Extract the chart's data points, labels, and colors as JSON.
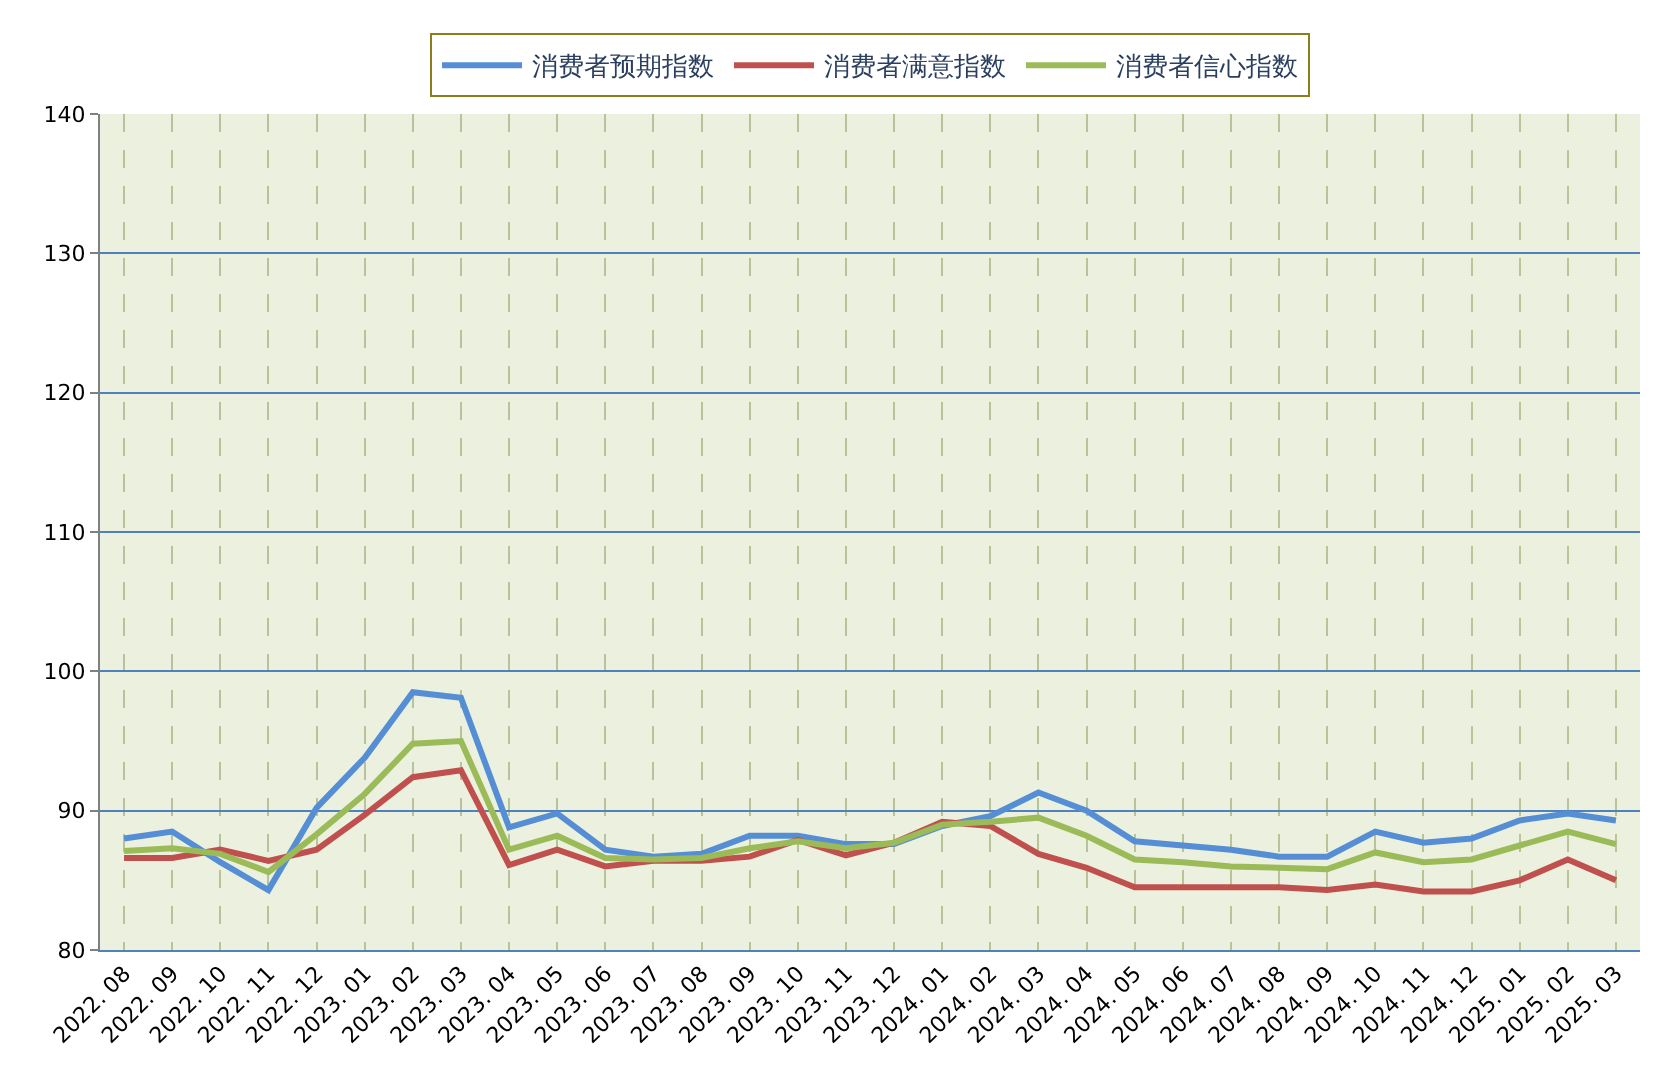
{
  "chart_data": {
    "type": "line",
    "categories": [
      "2022. 08",
      "2022. 09",
      "2022. 10",
      "2022. 11",
      "2022. 12",
      "2023. 01",
      "2023. 02",
      "2023. 03",
      "2023. 04",
      "2023. 05",
      "2023. 06",
      "2023. 07",
      "2023. 08",
      "2023. 09",
      "2023. 10",
      "2023. 11",
      "2023. 12",
      "2024. 01",
      "2024. 02",
      "2024. 03",
      "2024. 04",
      "2024. 05",
      "2024. 06",
      "2024. 07",
      "2024. 08",
      "2024. 09",
      "2024. 10",
      "2024. 11",
      "2024. 12",
      "2025. 01",
      "2025. 02",
      "2025. 03"
    ],
    "series": [
      {
        "name": "消费者预期指数",
        "color": "#558ed5",
        "values": [
          88.0,
          88.5,
          86.3,
          84.3,
          90.2,
          93.8,
          98.5,
          98.1,
          88.8,
          89.8,
          87.2,
          86.7,
          86.9,
          88.2,
          88.2,
          87.6,
          87.6,
          88.9,
          89.6,
          91.3,
          90.0,
          87.8,
          87.5,
          87.2,
          86.7,
          86.7,
          88.5,
          87.7,
          88.0,
          89.3,
          89.8,
          89.3
        ]
      },
      {
        "name": "消费者满意指数",
        "color": "#c0504d",
        "values": [
          86.6,
          86.6,
          87.2,
          86.4,
          87.2,
          89.7,
          92.4,
          92.9,
          86.1,
          87.2,
          86.0,
          86.4,
          86.4,
          86.7,
          87.9,
          86.8,
          87.7,
          89.2,
          88.9,
          86.9,
          85.9,
          84.5,
          84.5,
          84.5,
          84.5,
          84.3,
          84.7,
          84.2,
          84.2,
          85.0,
          86.5,
          85.0
        ]
      },
      {
        "name": "消费者信心指数",
        "color": "#9bbb59",
        "values": [
          87.1,
          87.3,
          86.9,
          85.6,
          88.3,
          91.2,
          94.8,
          95.0,
          87.2,
          88.2,
          86.6,
          86.5,
          86.6,
          87.3,
          87.8,
          87.3,
          87.7,
          89.0,
          89.2,
          89.5,
          88.2,
          86.5,
          86.3,
          86.0,
          85.9,
          85.8,
          87.0,
          86.3,
          86.5,
          87.5,
          88.5,
          87.6
        ]
      }
    ],
    "ylim": [
      80,
      140
    ],
    "yticks": [
      80,
      90,
      100,
      110,
      120,
      130,
      140
    ],
    "grid": true,
    "legend": "top",
    "marker": "none",
    "line_style": "solid"
  }
}
